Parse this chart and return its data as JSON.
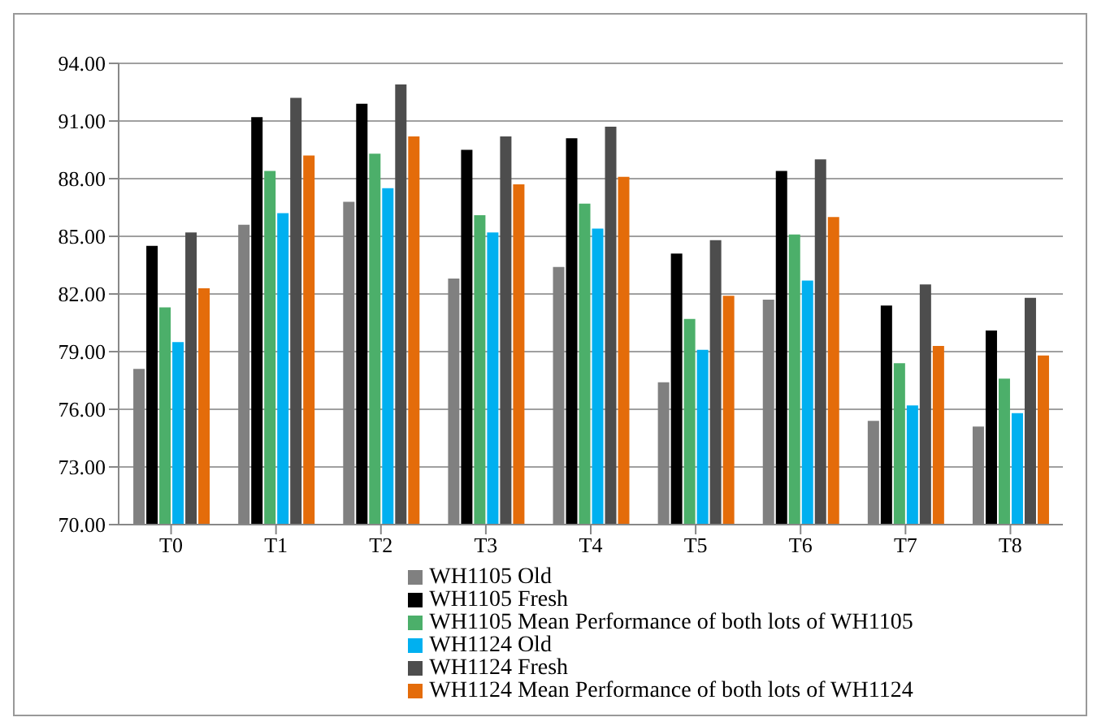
{
  "chart_data": {
    "type": "bar",
    "categories": [
      "T0",
      "T1",
      "T2",
      "T3",
      "T4",
      "T5",
      "T6",
      "T7",
      "T8"
    ],
    "series": [
      {
        "name": "WH1105 Old",
        "color": "#808080",
        "values": [
          78.1,
          85.6,
          86.8,
          82.8,
          83.4,
          77.4,
          81.7,
          75.4,
          75.1
        ]
      },
      {
        "name": "WH1105 Fresh",
        "color": "#000000",
        "values": [
          84.5,
          91.2,
          91.9,
          89.5,
          90.1,
          84.1,
          88.4,
          81.4,
          80.1
        ]
      },
      {
        "name": "WH1105 Mean Performance of both lots of WH1105",
        "color": "#4caf6a",
        "values": [
          81.3,
          88.4,
          89.3,
          86.1,
          86.7,
          80.7,
          85.1,
          78.4,
          77.6
        ]
      },
      {
        "name": "WH1124 Old",
        "color": "#00b0f0",
        "values": [
          79.5,
          86.2,
          87.5,
          85.2,
          85.4,
          79.1,
          82.7,
          76.2,
          75.8
        ]
      },
      {
        "name": "WH1124 Fresh",
        "color": "#4d4d4d",
        "values": [
          85.2,
          92.2,
          92.9,
          90.2,
          90.7,
          84.8,
          89.0,
          82.5,
          81.8
        ]
      },
      {
        "name": "WH1124 Mean Performance of both lots of WH1124",
        "color": "#e46c0a",
        "values": [
          82.3,
          89.2,
          90.2,
          87.7,
          88.1,
          81.9,
          86.0,
          79.3,
          78.8
        ]
      }
    ],
    "ylim": [
      70,
      94
    ],
    "yticks": [
      {
        "value": 70,
        "label": "70.00"
      },
      {
        "value": 73,
        "label": "73.00"
      },
      {
        "value": 76,
        "label": "76.00"
      },
      {
        "value": 79,
        "label": "79.00"
      },
      {
        "value": 82,
        "label": "82.00"
      },
      {
        "value": 85,
        "label": "85.00"
      },
      {
        "value": 88,
        "label": "88.00"
      },
      {
        "value": 91,
        "label": "91.00"
      },
      {
        "value": 94,
        "label": "94.00"
      }
    ],
    "grid": "y",
    "legend": "bottom"
  }
}
